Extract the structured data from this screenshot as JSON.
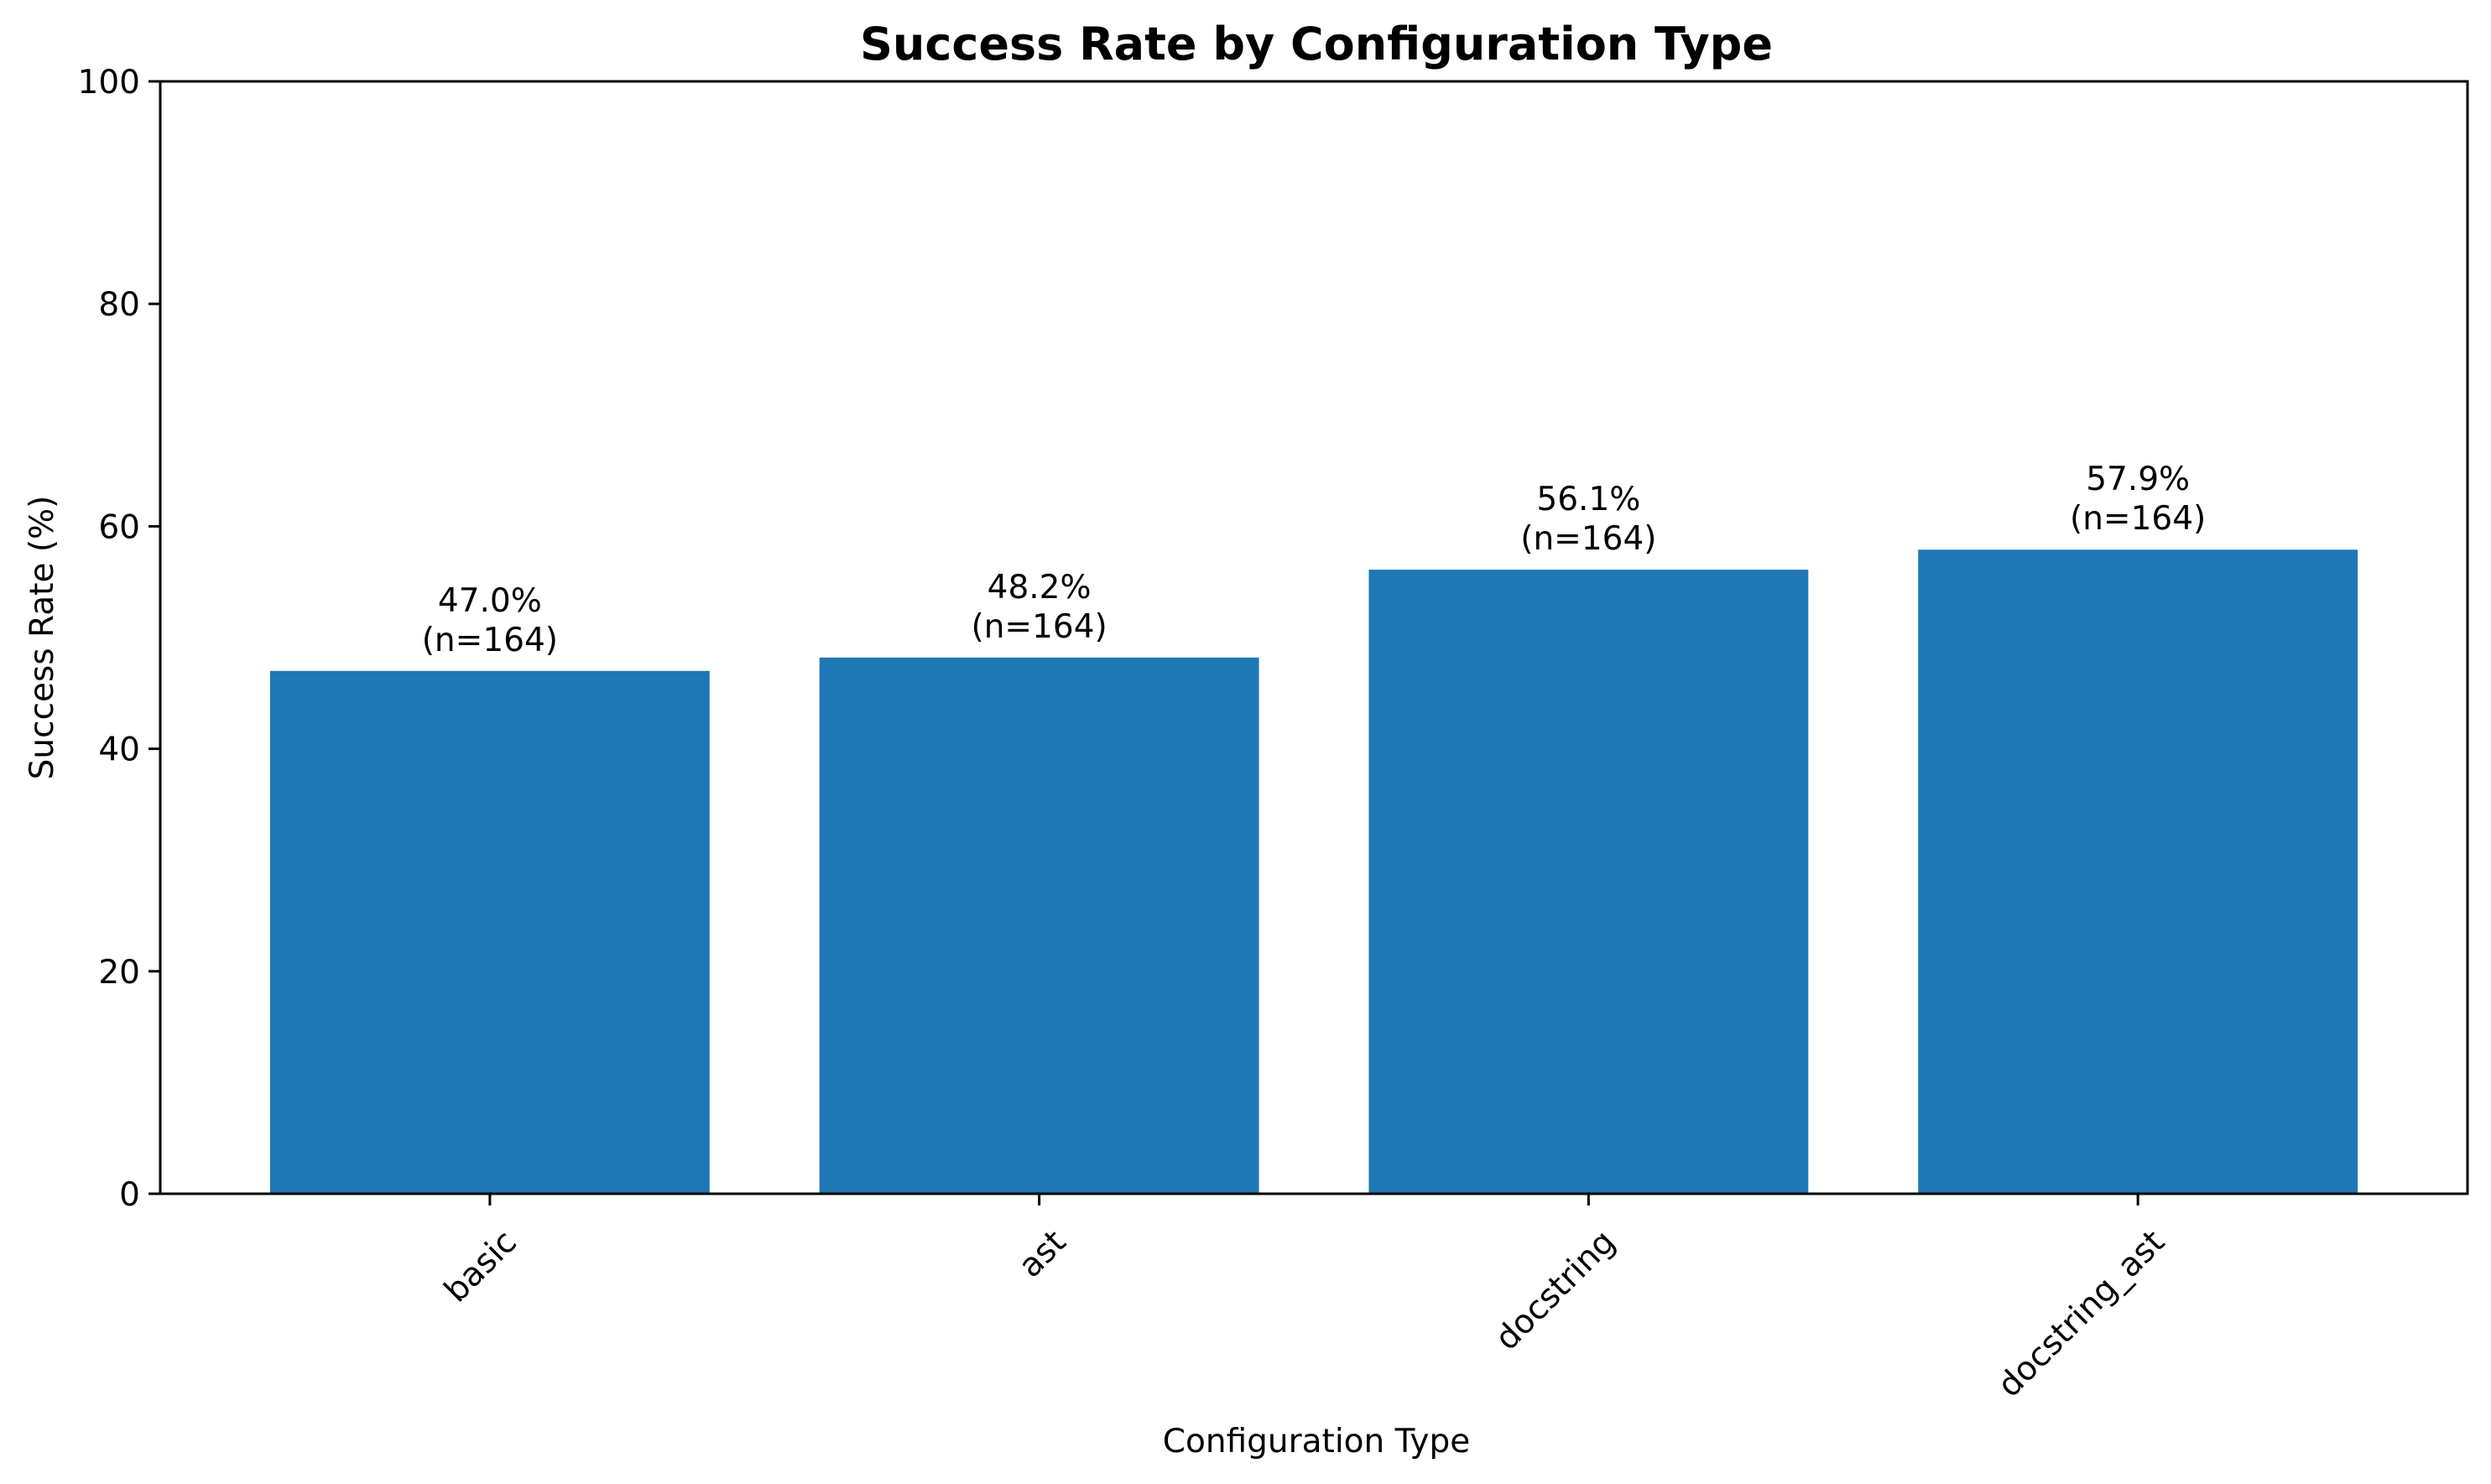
{
  "chart_data": {
    "type": "bar",
    "title": "Success Rate by Configuration Type",
    "xlabel": "Configuration Type",
    "ylabel": "Success Rate (%)",
    "categories": [
      "basic",
      "ast",
      "docstring",
      "docstring_ast"
    ],
    "values": [
      47.0,
      48.2,
      56.1,
      57.9
    ],
    "value_labels": [
      "47.0%",
      "48.2%",
      "56.1%",
      "57.9%"
    ],
    "count_labels": [
      "(n=164)",
      "(n=164)",
      "(n=164)",
      "(n=164)"
    ],
    "ylim": [
      0,
      100
    ],
    "yticks": [
      0,
      20,
      40,
      60,
      80,
      100
    ],
    "bar_color": "#1f77b4",
    "grid": false,
    "legend": "none"
  }
}
